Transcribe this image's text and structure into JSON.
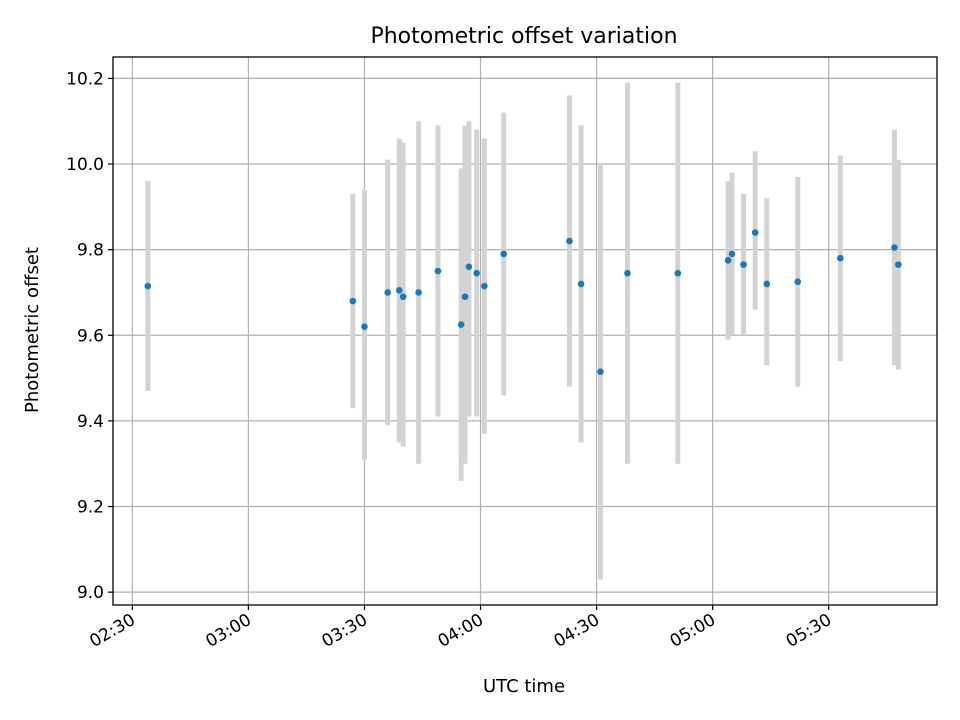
{
  "chart_data": {
    "type": "scatter",
    "title": "Photometric offset variation",
    "xlabel": "UTC time",
    "ylabel": "Photometric offset",
    "x_ticks": [
      "02:30",
      "03:00",
      "03:30",
      "04:00",
      "04:30",
      "05:00",
      "05:30"
    ],
    "y_ticks": [
      "9.0",
      "9.2",
      "9.4",
      "9.6",
      "9.8",
      "10.0",
      "10.2"
    ],
    "xlim": [
      "02:25",
      "05:58"
    ],
    "ylim": [
      8.97,
      10.25
    ],
    "grid": true,
    "point_color": "#1f77b4",
    "errorbar_color": "#d3d3d3",
    "points": [
      {
        "time": "02:34",
        "y": 9.715,
        "ylow": 9.47,
        "yhigh": 9.96
      },
      {
        "time": "03:27",
        "y": 9.68,
        "ylow": 9.43,
        "yhigh": 9.93
      },
      {
        "time": "03:30",
        "y": 9.62,
        "ylow": 9.31,
        "yhigh": 9.94
      },
      {
        "time": "03:36",
        "y": 9.7,
        "ylow": 9.39,
        "yhigh": 10.01
      },
      {
        "time": "03:39",
        "y": 9.705,
        "ylow": 9.35,
        "yhigh": 10.06
      },
      {
        "time": "03:40",
        "y": 9.69,
        "ylow": 9.34,
        "yhigh": 10.05
      },
      {
        "time": "03:44",
        "y": 9.7,
        "ylow": 9.3,
        "yhigh": 10.1
      },
      {
        "time": "03:49",
        "y": 9.75,
        "ylow": 9.41,
        "yhigh": 10.09
      },
      {
        "time": "03:55",
        "y": 9.625,
        "ylow": 9.26,
        "yhigh": 9.99
      },
      {
        "time": "03:56",
        "y": 9.69,
        "ylow": 9.3,
        "yhigh": 10.09
      },
      {
        "time": "03:57",
        "y": 9.76,
        "ylow": 9.41,
        "yhigh": 10.1
      },
      {
        "time": "03:59",
        "y": 9.745,
        "ylow": 9.41,
        "yhigh": 10.08
      },
      {
        "time": "04:01",
        "y": 9.715,
        "ylow": 9.37,
        "yhigh": 10.06
      },
      {
        "time": "04:06",
        "y": 9.79,
        "ylow": 9.46,
        "yhigh": 10.12
      },
      {
        "time": "04:23",
        "y": 9.82,
        "ylow": 9.48,
        "yhigh": 10.16
      },
      {
        "time": "04:26",
        "y": 9.72,
        "ylow": 9.35,
        "yhigh": 10.09
      },
      {
        "time": "04:31",
        "y": 9.515,
        "ylow": 9.03,
        "yhigh": 10.0
      },
      {
        "time": "04:38",
        "y": 9.745,
        "ylow": 9.3,
        "yhigh": 10.19
      },
      {
        "time": "04:51",
        "y": 9.745,
        "ylow": 9.3,
        "yhigh": 10.19
      },
      {
        "time": "05:04",
        "y": 9.775,
        "ylow": 9.59,
        "yhigh": 9.96
      },
      {
        "time": "05:05",
        "y": 9.79,
        "ylow": 9.6,
        "yhigh": 9.98
      },
      {
        "time": "05:08",
        "y": 9.765,
        "ylow": 9.6,
        "yhigh": 9.93
      },
      {
        "time": "05:11",
        "y": 9.84,
        "ylow": 9.66,
        "yhigh": 10.03
      },
      {
        "time": "05:14",
        "y": 9.72,
        "ylow": 9.53,
        "yhigh": 9.92
      },
      {
        "time": "05:22",
        "y": 9.725,
        "ylow": 9.48,
        "yhigh": 9.97
      },
      {
        "time": "05:33",
        "y": 9.78,
        "ylow": 9.54,
        "yhigh": 10.02
      },
      {
        "time": "05:47",
        "y": 9.805,
        "ylow": 9.53,
        "yhigh": 10.08
      },
      {
        "time": "05:48",
        "y": 9.765,
        "ylow": 9.52,
        "yhigh": 10.01
      }
    ]
  }
}
